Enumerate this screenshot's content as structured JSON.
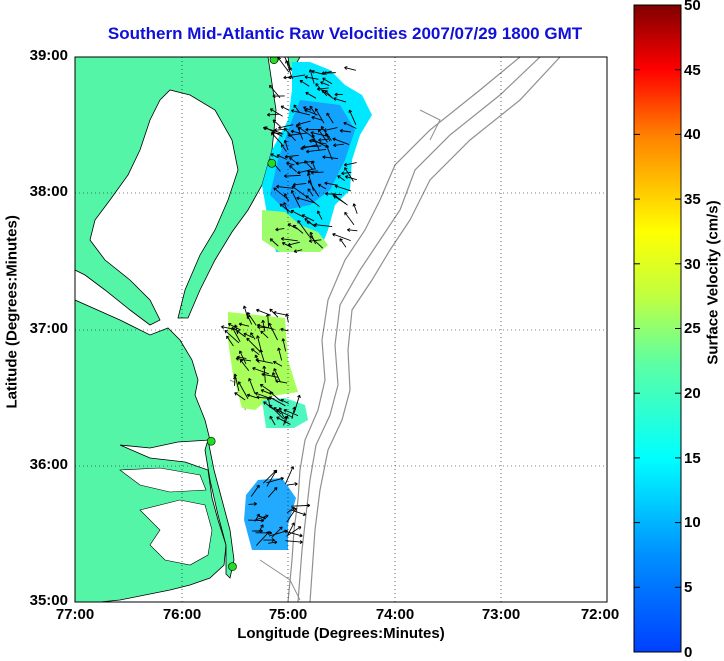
{
  "title": "Southern Mid-Atlantic Raw Velocities 2007/07/29 1800 GMT",
  "xlabel": "Longitude (Degrees:Minutes)",
  "ylabel": "Latitude (Degrees:Minutes)",
  "x_ticks": [
    "77:00",
    "76:00",
    "75:00",
    "74:00",
    "73:00",
    "72:00"
  ],
  "y_ticks": [
    "39:00",
    "38:00",
    "37:00",
    "36:00",
    "35:00"
  ],
  "colorbar": {
    "label": "Surface Velocity (cm/s)",
    "ticks": [
      "50",
      "45",
      "40",
      "35",
      "30",
      "25",
      "20",
      "15",
      "10",
      "5",
      "0"
    ],
    "range": [
      0,
      50
    ]
  },
  "colors": {
    "land": "#55f5a8",
    "coast": "#000000",
    "bathymetry": "#909090",
    "title": "#1010d8",
    "station": "#22dd22"
  },
  "map_extent": {
    "lon": [
      -77,
      -72
    ],
    "lat": [
      35,
      39
    ]
  },
  "stations": [
    {
      "lat": 38.98,
      "lon": -75.13
    },
    {
      "lat": 38.22,
      "lon": -75.15
    },
    {
      "lat": 36.18,
      "lon": -75.72
    },
    {
      "lat": 35.26,
      "lon": -75.52
    }
  ]
}
